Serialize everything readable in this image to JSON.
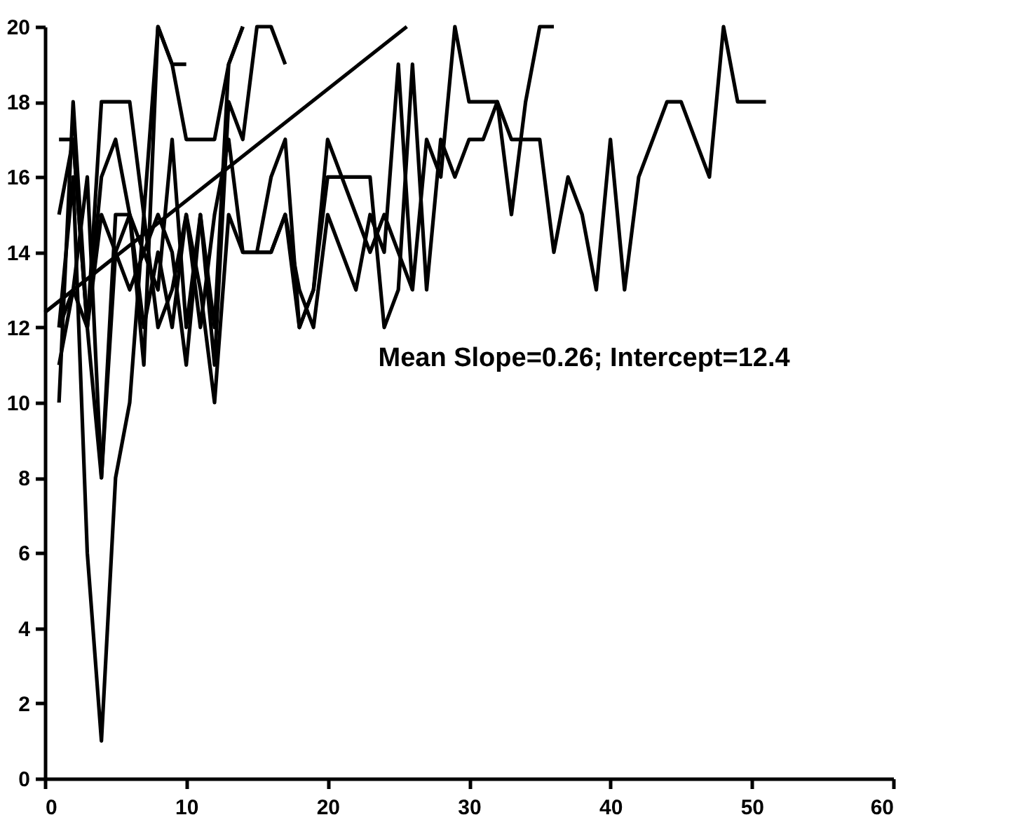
{
  "chart_data": {
    "type": "line",
    "xlim": [
      0,
      60
    ],
    "ylim": [
      0,
      20
    ],
    "xticks": [
      0,
      10,
      20,
      30,
      40,
      50,
      60
    ],
    "yticks": [
      0,
      2,
      4,
      6,
      8,
      10,
      12,
      14,
      16,
      18,
      20
    ],
    "grid": false,
    "annotations": [
      "Mean   Slope=0.26;   Intercept=12.4"
    ],
    "series": [
      {
        "color": "#000000",
        "x": [
          1,
          2,
          3,
          4,
          5,
          6,
          7,
          8,
          9,
          10,
          11,
          12,
          13,
          14,
          15,
          16,
          17,
          18,
          19,
          20,
          21,
          22,
          23,
          24,
          25,
          26,
          27,
          28,
          29,
          30,
          31,
          32,
          33,
          34,
          35,
          36,
          37,
          38,
          39,
          40,
          41,
          42,
          43,
          44,
          45,
          46,
          47,
          48,
          49,
          50,
          51
        ],
        "values": [
          12,
          13,
          12,
          15,
          14,
          15,
          12,
          14,
          12,
          15,
          13,
          10,
          15,
          14,
          14,
          14,
          15,
          12,
          13,
          17,
          16,
          16,
          16,
          12,
          13,
          19,
          13,
          17,
          16,
          17,
          17,
          18,
          17,
          17,
          17,
          14,
          16,
          15,
          13,
          17,
          13,
          16,
          17,
          18,
          18,
          17,
          16,
          20,
          18,
          18,
          18
        ]
      },
      {
        "color": "#000000",
        "x": [
          15,
          16,
          17,
          18,
          19,
          20,
          21,
          22,
          23,
          24,
          25,
          26,
          27,
          28,
          29,
          30,
          31,
          32,
          33,
          34,
          35,
          36
        ],
        "values": [
          14,
          14,
          15,
          13,
          12,
          15,
          14,
          13,
          15,
          14,
          19,
          13,
          17,
          16,
          20,
          18,
          18,
          18,
          15,
          18,
          20,
          20
        ]
      },
      {
        "color": "#000000",
        "x": [
          1,
          2,
          3,
          4,
          5,
          6,
          7,
          8,
          9,
          10
        ],
        "values": [
          15,
          17,
          12,
          18,
          18,
          18,
          15,
          20,
          19,
          19
        ]
      },
      {
        "color": "#000000",
        "x": [
          1,
          2,
          3,
          4,
          5,
          6,
          7,
          8,
          9,
          10,
          11,
          12,
          13,
          14
        ],
        "values": [
          17,
          17,
          12,
          16,
          17,
          15,
          11,
          20,
          19,
          17,
          17,
          17,
          19,
          20
        ]
      },
      {
        "color": "#000000",
        "x": [
          1,
          2,
          3,
          4,
          5,
          6,
          7,
          8,
          9,
          10,
          11,
          12,
          13,
          14,
          15,
          16,
          17
        ],
        "values": [
          10,
          18,
          12,
          8,
          15,
          15,
          14,
          13,
          17,
          12,
          15,
          11,
          18,
          17,
          20,
          20,
          19
        ]
      },
      {
        "color": "#000000",
        "x": [
          1,
          2,
          3,
          4,
          5,
          6,
          7,
          8,
          9,
          10,
          11,
          12,
          13,
          14,
          15,
          16,
          17,
          18,
          19,
          20,
          21,
          22,
          23,
          24,
          25,
          26
        ],
        "values": [
          12,
          16,
          6,
          1,
          8,
          10,
          15,
          12,
          13,
          15,
          12,
          15,
          17,
          14,
          14,
          16,
          17,
          12,
          13,
          16,
          16,
          15,
          14,
          15,
          14,
          13
        ]
      },
      {
        "color": "#000000",
        "x": [
          1,
          2,
          3,
          4,
          5,
          6,
          7,
          8,
          9,
          10,
          11,
          12,
          13,
          14
        ],
        "values": [
          11,
          13,
          16,
          8,
          14,
          13,
          14,
          15,
          14,
          11,
          15,
          12,
          19,
          20
        ]
      },
      {
        "type": "line",
        "color": "#000000",
        "x": [
          0,
          25.6
        ],
        "values": [
          12.4,
          20
        ]
      }
    ]
  }
}
